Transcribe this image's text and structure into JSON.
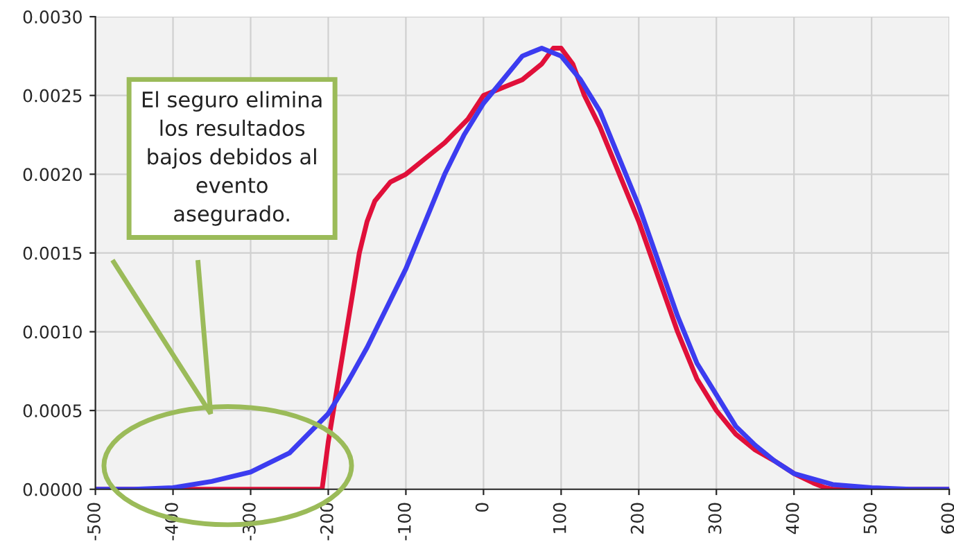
{
  "chart_data": {
    "type": "line",
    "xlim": [
      -500,
      600
    ],
    "xticks": [
      -500,
      -400,
      -300,
      -200,
      -100,
      0,
      100,
      200,
      300,
      400,
      500,
      600
    ],
    "ylim": [
      0,
      0.003
    ],
    "yticks": [
      {
        "value": 0,
        "label": "0.0000"
      },
      {
        "value": 0.0005,
        "label": "0.0005"
      },
      {
        "value": 0.001,
        "label": "0.0010"
      },
      {
        "value": 0.0015,
        "label": "0.0015"
      },
      {
        "value": 0.002,
        "label": "0.0020"
      },
      {
        "value": 0.0025,
        "label": "0.0025"
      },
      {
        "value": 0.003,
        "label": "0.0030"
      }
    ],
    "grid": true,
    "legend": false,
    "marker": "none",
    "line_style": "solid",
    "series": [
      {
        "color": "#e0103a",
        "x": [
          -500,
          -400,
          -300,
          -208,
          -200,
          -190,
          -180,
          -170,
          -160,
          -150,
          -140,
          -120,
          -100,
          -80,
          -50,
          -20,
          0,
          25,
          50,
          75,
          90,
          100,
          115,
          130,
          150,
          175,
          200,
          225,
          250,
          275,
          300,
          325,
          350,
          375,
          400,
          425,
          440,
          450,
          500,
          600
        ],
        "values": [
          0,
          0,
          0,
          0,
          0.0003,
          0.0006,
          0.0009,
          0.0012,
          0.0015,
          0.0017,
          0.00183,
          0.00195,
          0.002,
          0.00208,
          0.0022,
          0.00235,
          0.0025,
          0.00255,
          0.0026,
          0.0027,
          0.0028,
          0.0028,
          0.0027,
          0.0025,
          0.0023,
          0.002,
          0.0017,
          0.00135,
          0.001,
          0.0007,
          0.0005,
          0.00035,
          0.00025,
          0.00018,
          0.0001,
          4e-05,
          1e-05,
          0,
          0,
          0
        ]
      },
      {
        "color": "#3c3cf0",
        "x": [
          -500,
          -450,
          -400,
          -350,
          -300,
          -250,
          -200,
          -175,
          -150,
          -125,
          -100,
          -75,
          -50,
          -25,
          0,
          25,
          50,
          75,
          100,
          125,
          150,
          175,
          200,
          225,
          250,
          275,
          300,
          325,
          350,
          375,
          400,
          450,
          500,
          550,
          600
        ],
        "values": [
          0,
          0,
          1e-05,
          5e-05,
          0.00011,
          0.00023,
          0.00048,
          0.00068,
          0.0009,
          0.00115,
          0.0014,
          0.0017,
          0.002,
          0.00225,
          0.00245,
          0.0026,
          0.00275,
          0.0028,
          0.00275,
          0.0026,
          0.0024,
          0.0021,
          0.0018,
          0.00145,
          0.0011,
          0.0008,
          0.0006,
          0.0004,
          0.00028,
          0.00018,
          0.0001,
          3e-05,
          1e-05,
          0,
          0
        ]
      }
    ],
    "annotations": [
      "El seguro elimina\nlos resultados\nbajos debidos al\nevento\nasegurado."
    ]
  }
}
